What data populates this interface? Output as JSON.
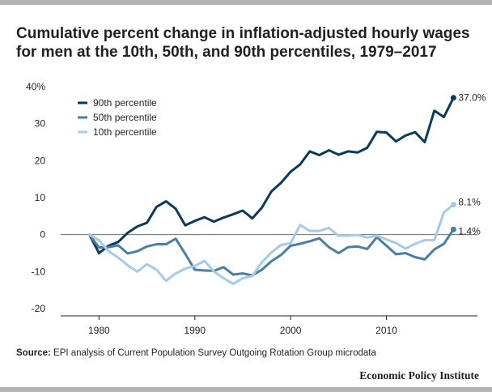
{
  "title": "Cumulative percent change in inflation-adjusted hourly wages for men at the 10th, 50th, and 90th percentiles, 1979–2017",
  "source": {
    "label": "Source:",
    "text": " EPI analysis of Current Population Survey Outgoing Rotation Group microdata"
  },
  "brand": "Economic Policy Institute",
  "chart_data": {
    "type": "line",
    "title": "Cumulative percent change in inflation-adjusted hourly wages for men at the 10th, 50th, and 90th percentiles, 1979–2017",
    "xlabel": "",
    "ylabel": "",
    "xlim": [
      1976,
      2019.5
    ],
    "ylim": [
      -20,
      40
    ],
    "x_ticks": [
      1980,
      1990,
      2000,
      2010
    ],
    "y_ticks": [
      40,
      30,
      20,
      10,
      0,
      -10,
      -20
    ],
    "y_tick_labels": [
      "40%",
      "30",
      "20",
      "10",
      "0",
      "-10",
      "-20"
    ],
    "grid": false,
    "legend_position": "top-left",
    "x": [
      1979,
      1980,
      1981,
      1982,
      1983,
      1984,
      1985,
      1986,
      1987,
      1988,
      1989,
      1990,
      1991,
      1992,
      1993,
      1994,
      1995,
      1996,
      1997,
      1998,
      1999,
      2000,
      2001,
      2002,
      2003,
      2004,
      2005,
      2006,
      2007,
      2008,
      2009,
      2010,
      2011,
      2012,
      2013,
      2014,
      2015,
      2016,
      2017
    ],
    "series": [
      {
        "name": "90th percentile",
        "color": "#0b3a5c",
        "values": [
          0,
          -5,
          -3,
          -2,
          0.5,
          2.2,
          3.2,
          7.5,
          9,
          7,
          2.5,
          3.7,
          4.7,
          3.5,
          4.6,
          5.5,
          6.5,
          4.4,
          7.3,
          11.7,
          14,
          17,
          19,
          22.5,
          21.5,
          22.8,
          21.6,
          22.5,
          22.2,
          23.5,
          27.8,
          27.6,
          25.2,
          26.8,
          27.7,
          25,
          33.5,
          31.8,
          37.0
        ],
        "end_label": "37.0%"
      },
      {
        "name": "50th percentile",
        "color": "#4a7ea3",
        "values": [
          0,
          -3.5,
          -3.4,
          -2.9,
          -5.1,
          -4.5,
          -3.2,
          -2.6,
          -2.6,
          -1.1,
          -5.2,
          -9.5,
          -9.7,
          -9.8,
          -8.8,
          -10.8,
          -10.5,
          -11,
          -9.5,
          -7.2,
          -5.5,
          -3,
          -2.5,
          -1.8,
          -1,
          -3.4,
          -5,
          -3.4,
          -3.2,
          -3.9,
          -0.7,
          -3,
          -5.3,
          -5,
          -6.1,
          -6.7,
          -4,
          -2.5,
          1.4
        ],
        "end_label": "1.4%"
      },
      {
        "name": "10th percentile",
        "color": "#a5cbe8",
        "values": [
          0,
          -1.5,
          -4.5,
          -6.2,
          -8.3,
          -10,
          -8,
          -9.5,
          -12.5,
          -10.5,
          -9.2,
          -8.5,
          -7.1,
          -10,
          -11.8,
          -13.3,
          -11.8,
          -11.2,
          -7.5,
          -4.8,
          -2.8,
          -2.3,
          2.6,
          1,
          1,
          1.8,
          -0.3,
          -0.3,
          -0.1,
          -0.8,
          -0.3,
          -1.3,
          -2.3,
          -3.8,
          -2.5,
          -1.5,
          -1.5,
          6,
          8.1
        ],
        "end_label": "8.1%"
      }
    ]
  }
}
